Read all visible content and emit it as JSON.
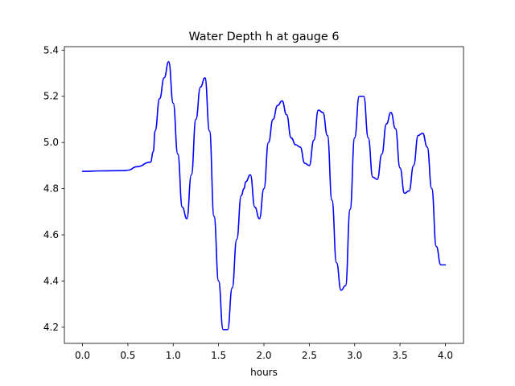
{
  "chart_data": {
    "type": "line",
    "title": "Water Depth h at gauge 6",
    "xlabel": "hours",
    "ylabel": "",
    "xlim": [
      -0.2,
      4.2
    ],
    "ylim": [
      4.13,
      5.415
    ],
    "xticks": [
      "0.0",
      "0.5",
      "1.0",
      "1.5",
      "2.0",
      "2.5",
      "3.0",
      "3.5",
      "4.0"
    ],
    "yticks": [
      "4.2",
      "4.4",
      "4.6",
      "4.8",
      "5.0",
      "5.2",
      "5.4"
    ],
    "grid": false,
    "legend": "none",
    "series": [
      {
        "color": "#0000ff",
        "x": [
          0.0,
          0.2,
          0.45,
          0.5,
          0.6,
          0.75,
          0.78,
          0.8,
          0.85,
          0.9,
          0.95,
          1.0,
          1.05,
          1.1,
          1.15,
          1.2,
          1.25,
          1.3,
          1.35,
          1.4,
          1.45,
          1.5,
          1.55,
          1.6,
          1.65,
          1.7,
          1.75,
          1.78,
          1.8,
          1.85,
          1.9,
          1.95,
          2.0,
          2.05,
          2.1,
          2.15,
          2.2,
          2.25,
          2.3,
          2.35,
          2.4,
          2.45,
          2.5,
          2.55,
          2.6,
          2.65,
          2.7,
          2.75,
          2.8,
          2.85,
          2.9,
          2.95,
          3.0,
          3.05,
          3.1,
          3.15,
          3.2,
          3.25,
          3.3,
          3.35,
          3.4,
          3.45,
          3.5,
          3.55,
          3.6,
          3.65,
          3.7,
          3.75,
          3.8,
          3.85,
          3.9,
          3.95,
          4.0
        ],
        "y": [
          4.875,
          4.877,
          4.878,
          4.88,
          4.895,
          4.915,
          4.96,
          5.05,
          5.19,
          5.28,
          5.35,
          5.17,
          4.95,
          4.72,
          4.67,
          4.86,
          5.1,
          5.24,
          5.28,
          5.05,
          4.68,
          4.4,
          4.19,
          4.19,
          4.37,
          4.58,
          4.77,
          4.8,
          4.83,
          4.86,
          4.72,
          4.67,
          4.8,
          5.0,
          5.1,
          5.16,
          5.18,
          5.12,
          5.02,
          4.99,
          4.98,
          4.91,
          4.9,
          5.01,
          5.14,
          5.13,
          5.03,
          4.75,
          4.48,
          4.36,
          4.38,
          4.71,
          5.02,
          5.2,
          5.2,
          5.02,
          4.85,
          4.84,
          4.95,
          5.08,
          5.13,
          5.06,
          4.89,
          4.78,
          4.79,
          4.9,
          5.03,
          5.04,
          4.98,
          4.8,
          4.55,
          4.47,
          4.47
        ]
      }
    ]
  }
}
